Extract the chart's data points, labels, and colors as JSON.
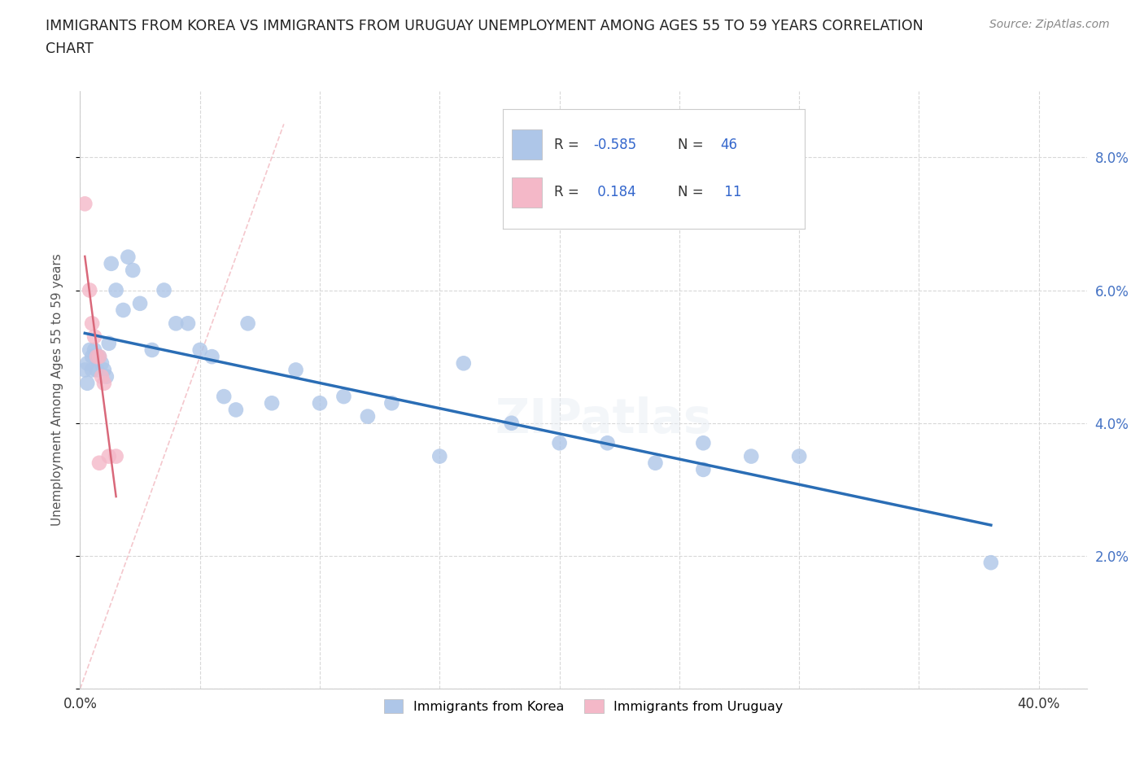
{
  "title_line1": "IMMIGRANTS FROM KOREA VS IMMIGRANTS FROM URUGUAY UNEMPLOYMENT AMONG AGES 55 TO 59 YEARS CORRELATION",
  "title_line2": "CHART",
  "source": "Source: ZipAtlas.com",
  "ylabel": "Unemployment Among Ages 55 to 59 years",
  "xlim": [
    0.0,
    0.42
  ],
  "ylim": [
    0.0,
    0.09
  ],
  "xticks": [
    0.0,
    0.05,
    0.1,
    0.15,
    0.2,
    0.25,
    0.3,
    0.35,
    0.4
  ],
  "yticks": [
    0.0,
    0.02,
    0.04,
    0.06,
    0.08
  ],
  "korea_R": -0.585,
  "korea_N": 46,
  "uruguay_R": 0.184,
  "uruguay_N": 11,
  "korea_color": "#aec6e8",
  "uruguay_color": "#f4b8c8",
  "korea_line_color": "#2a6db5",
  "uruguay_line_color": "#d9687a",
  "diag_color": "#f0b0b8",
  "background_color": "#ffffff",
  "grid_color": "#d8d8d8",
  "korea_x": [
    0.002,
    0.003,
    0.003,
    0.004,
    0.005,
    0.005,
    0.006,
    0.007,
    0.007,
    0.008,
    0.009,
    0.01,
    0.011,
    0.012,
    0.013,
    0.015,
    0.018,
    0.02,
    0.022,
    0.025,
    0.03,
    0.035,
    0.04,
    0.045,
    0.05,
    0.055,
    0.06,
    0.065,
    0.07,
    0.08,
    0.09,
    0.1,
    0.11,
    0.12,
    0.13,
    0.15,
    0.16,
    0.18,
    0.2,
    0.22,
    0.24,
    0.26,
    0.28,
    0.3,
    0.38,
    0.26
  ],
  "korea_y": [
    0.048,
    0.046,
    0.049,
    0.051,
    0.05,
    0.048,
    0.051,
    0.05,
    0.048,
    0.05,
    0.049,
    0.048,
    0.047,
    0.052,
    0.064,
    0.06,
    0.057,
    0.065,
    0.063,
    0.058,
    0.051,
    0.06,
    0.055,
    0.055,
    0.051,
    0.05,
    0.044,
    0.042,
    0.055,
    0.043,
    0.048,
    0.043,
    0.044,
    0.041,
    0.043,
    0.035,
    0.049,
    0.04,
    0.037,
    0.037,
    0.034,
    0.033,
    0.035,
    0.035,
    0.019,
    0.037
  ],
  "uruguay_x": [
    0.002,
    0.004,
    0.005,
    0.006,
    0.007,
    0.008,
    0.008,
    0.009,
    0.01,
    0.012,
    0.015
  ],
  "uruguay_y": [
    0.073,
    0.06,
    0.055,
    0.053,
    0.05,
    0.05,
    0.034,
    0.047,
    0.046,
    0.035,
    0.035
  ],
  "legend_korea_label": "R = -0.585   N = 46",
  "legend_uruguay_label": "R =  0.184   N =  11",
  "bottom_legend_korea": "Immigrants from Korea",
  "bottom_legend_uruguay": "Immigrants from Uruguay"
}
